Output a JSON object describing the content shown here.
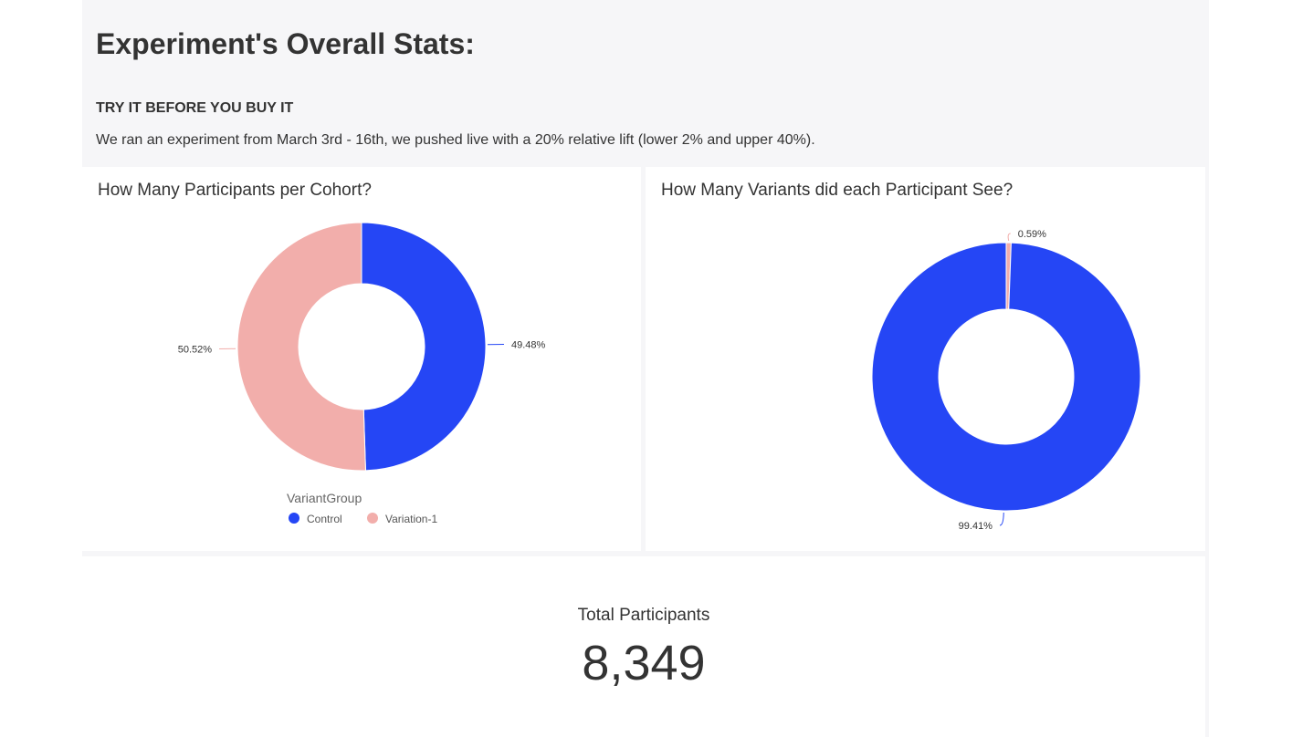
{
  "header": {
    "title": "Experiment's Overall Stats:",
    "subtitle": "TRY IT BEFORE YOU BUY IT",
    "description": "We ran an experiment from March 3rd - 16th, we pushed live with a 20% relative lift (lower 2% and upper 40%)."
  },
  "chart_data": [
    {
      "type": "pie",
      "title": "How Many Participants per Cohort?",
      "legend_title": "VariantGroup",
      "legend_position": "bottom",
      "categories": [
        "Control",
        "Variation-1"
      ],
      "values": [
        49.48,
        50.52
      ],
      "labels": [
        "49.48%",
        "50.52%"
      ],
      "colors": [
        "#2546f5",
        "#f2aeab"
      ],
      "donut": true
    },
    {
      "type": "pie",
      "title": "How Many Variants did each Participant See?",
      "values": [
        0.59,
        99.41
      ],
      "labels": [
        "0.59%",
        "99.41%"
      ],
      "colors": [
        "#f2aeab",
        "#2546f5"
      ],
      "donut": true
    }
  ],
  "kpi": {
    "label": "Total Participants",
    "value": "8,349"
  }
}
